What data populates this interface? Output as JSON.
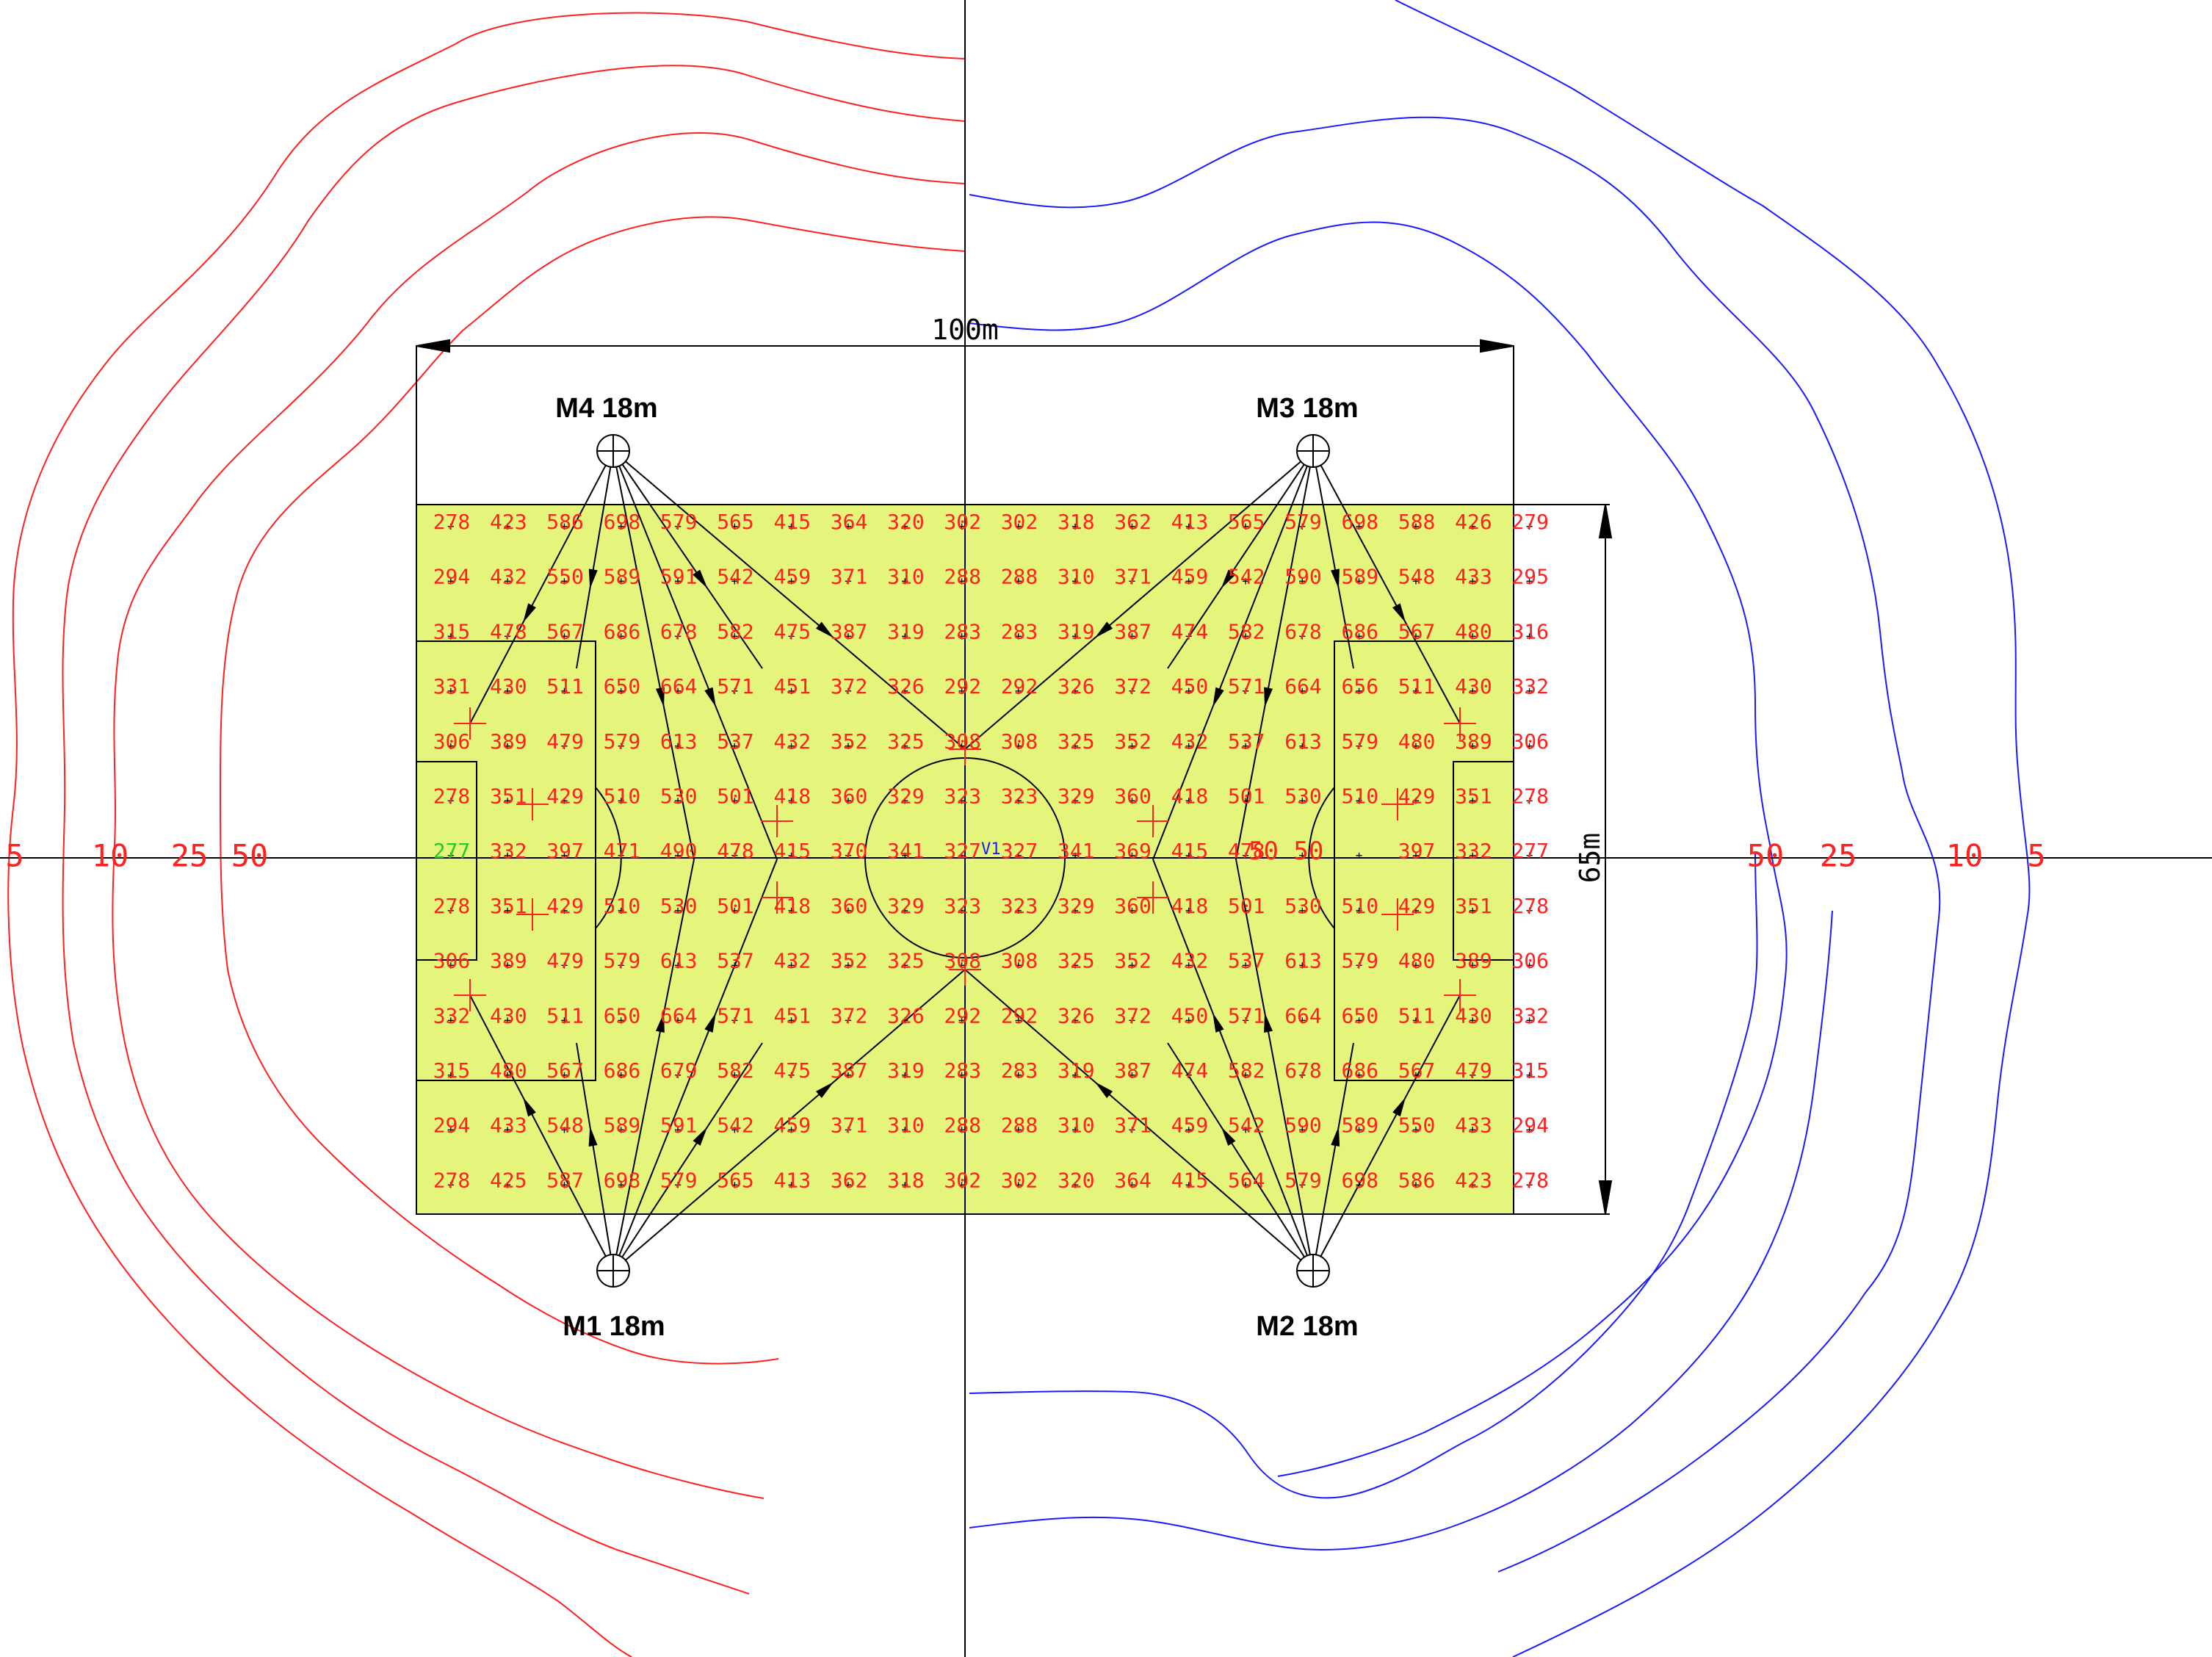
{
  "colors": {
    "background": "#ffffff",
    "pitch_fill": "#e5f57c",
    "value_text": "#ff2020",
    "edge_value_text": "#22cc22",
    "line": "#000000",
    "contour_left": "#ff2020",
    "contour_right": "#1a1aff",
    "marker": "#ff2020"
  },
  "dimensions": {
    "width_label": "100m",
    "height_label": "65m"
  },
  "masts": [
    {
      "id": "M4",
      "label": "M4 18m",
      "corner": "top-left"
    },
    {
      "id": "M3",
      "label": "M3 18m",
      "corner": "top-right"
    },
    {
      "id": "M1",
      "label": "M1 18m",
      "corner": "bottom-left"
    },
    {
      "id": "M2",
      "label": "M2 18m",
      "corner": "bottom-right"
    }
  ],
  "contour_levels": {
    "left": [
      "5",
      "10",
      "25",
      "50"
    ],
    "right": [
      "50",
      "25",
      "10",
      "5"
    ]
  },
  "center_labels": {
    "v1": "V1",
    "sixth_value_row": "50 50"
  },
  "illuminance_grid": [
    [
      "278",
      "423",
      "586",
      "698",
      "579",
      "565",
      "415",
      "364",
      "320",
      "302",
      "302",
      "318",
      "362",
      "413",
      "565",
      "579",
      "698",
      "588",
      "426",
      "279"
    ],
    [
      "294",
      "432",
      "550",
      "589",
      "591",
      "542",
      "459",
      "371",
      "310",
      "288",
      "288",
      "310",
      "371",
      "459",
      "542",
      "590",
      "589",
      "548",
      "433",
      "295"
    ],
    [
      "315",
      "478",
      "567",
      "686",
      "678",
      "582",
      "475",
      "387",
      "319",
      "283",
      "283",
      "319",
      "387",
      "474",
      "582",
      "678",
      "686",
      "567",
      "480",
      "316"
    ],
    [
      "331",
      "430",
      "511",
      "650",
      "664",
      "571",
      "451",
      "372",
      "326",
      "292",
      "292",
      "326",
      "372",
      "450",
      "571",
      "664",
      "656",
      "511",
      "430",
      "332"
    ],
    [
      "306",
      "389",
      "479",
      "579",
      "613",
      "537",
      "432",
      "352",
      "325",
      "308",
      "308",
      "325",
      "352",
      "432",
      "537",
      "613",
      "579",
      "480",
      "389",
      "306"
    ],
    [
      "278",
      "351",
      "429",
      "510",
      "530",
      "501",
      "418",
      "360",
      "329",
      "323",
      "323",
      "329",
      "360",
      "418",
      "501",
      "530",
      "510",
      "429",
      "351",
      "278"
    ],
    [
      "277",
      "332",
      "397",
      "471",
      "490",
      "478",
      "415",
      "370",
      "341",
      "327",
      "327",
      "341",
      "369",
      "415",
      "478",
      "",
      "",
      "397",
      "332",
      "277"
    ],
    [
      "278",
      "351",
      "429",
      "510",
      "530",
      "501",
      "418",
      "360",
      "329",
      "323",
      "323",
      "329",
      "360",
      "418",
      "501",
      "530",
      "510",
      "429",
      "351",
      "278"
    ],
    [
      "306",
      "389",
      "479",
      "579",
      "613",
      "537",
      "432",
      "352",
      "325",
      "308",
      "308",
      "325",
      "352",
      "432",
      "537",
      "613",
      "579",
      "480",
      "389",
      "306"
    ],
    [
      "332",
      "430",
      "511",
      "650",
      "664",
      "571",
      "451",
      "372",
      "326",
      "292",
      "292",
      "326",
      "372",
      "450",
      "571",
      "664",
      "650",
      "511",
      "430",
      "332"
    ],
    [
      "315",
      "480",
      "567",
      "686",
      "679",
      "582",
      "475",
      "387",
      "319",
      "283",
      "283",
      "319",
      "387",
      "474",
      "582",
      "678",
      "686",
      "567",
      "479",
      "315"
    ],
    [
      "294",
      "433",
      "548",
      "589",
      "591",
      "542",
      "459",
      "371",
      "310",
      "288",
      "288",
      "310",
      "371",
      "459",
      "542",
      "590",
      "589",
      "550",
      "433",
      "294"
    ],
    [
      "278",
      "425",
      "587",
      "698",
      "579",
      "565",
      "413",
      "362",
      "318",
      "302",
      "302",
      "320",
      "364",
      "415",
      "564",
      "579",
      "698",
      "586",
      "423",
      "278"
    ]
  ]
}
